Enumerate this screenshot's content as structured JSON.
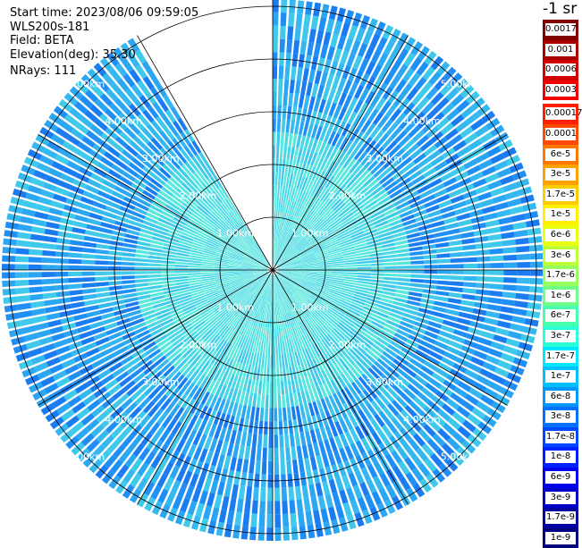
{
  "header": {
    "start_time": "Start time: 2023/08/06 09:59:05",
    "instrument": "WLS200s-181",
    "field": "Field: BETA",
    "elevation": "Elevation(deg): 35.30",
    "nrays": "NRays: 111"
  },
  "colorbar": {
    "unit_label": "-1 sr",
    "upper": [
      "0.0017",
      "0.001",
      "0.0006",
      "0.0003"
    ],
    "upper_colors": [
      "#800000",
      "#a80000",
      "#d20000",
      "#f00000"
    ],
    "lower": [
      "0.00017",
      "0.0001",
      "6e-5",
      "3e-5",
      "1.7e-5",
      "1e-5",
      "6e-6",
      "3e-6",
      "1.7e-6",
      "1e-6",
      "6e-7",
      "3e-7",
      "1.7e-7",
      "1e-7",
      "6e-8",
      "3e-8",
      "1.7e-8",
      "1e-8",
      "6e-9",
      "3e-9",
      "1.7e-9",
      "1e-9"
    ],
    "lower_colors": [
      "#ff2000",
      "#ff4a00",
      "#ff7800",
      "#ffa200",
      "#ffcc00",
      "#fff000",
      "#e8ff10",
      "#c0ff38",
      "#98ff60",
      "#70ff88",
      "#48ffb0",
      "#28ffd8",
      "#00e8ff",
      "#00c0ff",
      "#0098ff",
      "#0070ff",
      "#0048ff",
      "#0020ff",
      "#0000f0",
      "#0000c8",
      "#0000a0",
      "#000080"
    ]
  },
  "range_rings": {
    "labels": [
      "1.00km",
      "2.00km",
      "3.00km",
      "4.00km",
      "5.00km"
    ]
  },
  "ppi": {
    "sector_colors": [
      "#1f8ff5",
      "#2aa6f3",
      "#35b8f0",
      "#3fc9ea",
      "#48d8e6",
      "#58e8dc",
      "#1a7cf0",
      "#2fb0f2"
    ],
    "missing_sector_deg": [
      -30,
      0
    ]
  }
}
